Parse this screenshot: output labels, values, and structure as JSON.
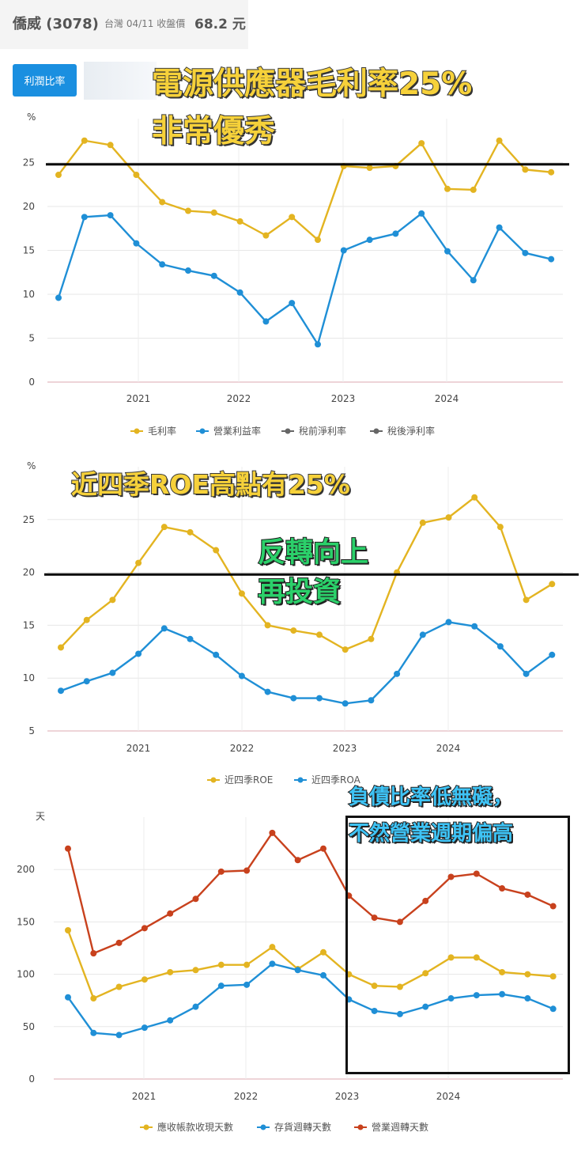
{
  "header": {
    "name": "僑威 (3078)",
    "meta": "台灣 04/11 收盤價",
    "price": "68.2 元"
  },
  "tab": {
    "label": "利潤比率"
  },
  "overlays": {
    "c1_line1": "電源供應器毛利率25%",
    "c1_line2": "非常優秀",
    "c2_line1": "近四季ROE高點有25%",
    "c2_green1": "反轉向上",
    "c2_green2": "再投資",
    "c3_line1": "負債比率低無礙，",
    "c3_line2": "不然營業週期偏高"
  },
  "colors": {
    "yellow": "#e3b421",
    "blue": "#1f8fd6",
    "red": "#c8411d",
    "gray": "#666666"
  },
  "chart_data": [
    {
      "type": "line",
      "ylabel": "%",
      "ylim": [
        0,
        30
      ],
      "yticks": [
        0,
        5,
        10,
        15,
        20,
        25
      ],
      "xticks": [
        "2021",
        "2022",
        "2023",
        "2024"
      ],
      "x_quarters": [
        "2020Q2",
        "2020Q3",
        "2020Q4",
        "2021Q1",
        "2021Q2",
        "2021Q3",
        "2021Q4",
        "2022Q1",
        "2022Q2",
        "2022Q3",
        "2022Q4",
        "2023Q1",
        "2023Q2",
        "2023Q3",
        "2023Q4",
        "2024Q1",
        "2024Q2",
        "2024Q3",
        "2024Q4",
        "2025Q1"
      ],
      "reference_line": 24.8,
      "series": [
        {
          "name": "毛利率",
          "color": "#e3b421",
          "values": [
            23.6,
            27.5,
            27,
            23.6,
            20.5,
            19.5,
            19.3,
            18.3,
            16.7,
            18.8,
            16.2,
            24.6,
            24.4,
            24.6,
            27.2,
            22,
            21.9,
            27.5,
            24.2,
            23.9
          ]
        },
        {
          "name": "營業利益率",
          "color": "#1f8fd6",
          "values": [
            9.6,
            18.8,
            19,
            15.8,
            13.4,
            12.7,
            12.1,
            10.2,
            6.9,
            9,
            4.3,
            15,
            16.2,
            16.9,
            19.2,
            14.9,
            11.6,
            17.6,
            14.7,
            14
          ]
        },
        {
          "name": "稅前淨利率",
          "color": "#666666",
          "values": [],
          "hidden": true
        },
        {
          "name": "稅後淨利率",
          "color": "#666666",
          "values": [],
          "hidden": true
        }
      ]
    },
    {
      "type": "line",
      "ylabel": "%",
      "ylim": [
        5,
        30
      ],
      "yticks": [
        5,
        10,
        15,
        20,
        25
      ],
      "xticks": [
        "2021",
        "2022",
        "2023",
        "2024"
      ],
      "x_quarters": [
        "2020Q2",
        "2020Q3",
        "2020Q4",
        "2021Q1",
        "2021Q2",
        "2021Q3",
        "2021Q4",
        "2022Q1",
        "2022Q2",
        "2022Q3",
        "2022Q4",
        "2023Q1",
        "2023Q2",
        "2023Q3",
        "2023Q4",
        "2024Q1",
        "2024Q2",
        "2024Q3",
        "2024Q4",
        "2025Q1"
      ],
      "reference_line": 19.8,
      "series": [
        {
          "name": "近四季ROE",
          "color": "#e3b421",
          "values": [
            12.9,
            15.5,
            17.4,
            20.9,
            24.3,
            23.8,
            22.1,
            18,
            15,
            14.5,
            14.1,
            12.7,
            13.7,
            20,
            24.7,
            25.2,
            27.1,
            24.3,
            17.4,
            18.9
          ]
        },
        {
          "name": "近四季ROA",
          "color": "#1f8fd6",
          "values": [
            8.8,
            9.7,
            10.5,
            12.3,
            14.7,
            13.7,
            12.2,
            10.2,
            8.7,
            8.1,
            8.1,
            7.6,
            7.9,
            10.4,
            14.1,
            15.3,
            14.9,
            13,
            10.4,
            12.2
          ]
        }
      ]
    },
    {
      "type": "line",
      "ylabel": "天",
      "ylim": [
        0,
        250
      ],
      "yticks": [
        0,
        50,
        100,
        150,
        200
      ],
      "xticks": [
        "2021",
        "2022",
        "2023",
        "2024"
      ],
      "x_quarters": [
        "2020Q2",
        "2020Q3",
        "2020Q4",
        "2021Q1",
        "2021Q2",
        "2021Q3",
        "2021Q4",
        "2022Q1",
        "2022Q2",
        "2022Q3",
        "2022Q4",
        "2023Q1",
        "2023Q2",
        "2023Q3",
        "2023Q4",
        "2024Q1",
        "2024Q2",
        "2024Q3",
        "2024Q4",
        "2025Q1"
      ],
      "series": [
        {
          "name": "應收帳款收現天數",
          "color": "#e3b421",
          "values": [
            142,
            77,
            88,
            95,
            102,
            104,
            109,
            109,
            126,
            105,
            121,
            100,
            89,
            88,
            101,
            116,
            116,
            102,
            100,
            98
          ]
        },
        {
          "name": "存貨週轉天數",
          "color": "#1f8fd6",
          "values": [
            78,
            44,
            42,
            49,
            56,
            69,
            89,
            90,
            110,
            104,
            99,
            76,
            65,
            62,
            69,
            77,
            80,
            81,
            77,
            67
          ]
        },
        {
          "name": "營業週轉天數",
          "color": "#c8411d",
          "values": [
            220,
            120,
            130,
            144,
            158,
            172,
            198,
            199,
            235,
            209,
            220,
            175,
            154,
            150,
            170,
            193,
            196,
            182,
            176,
            165
          ]
        }
      ]
    }
  ]
}
